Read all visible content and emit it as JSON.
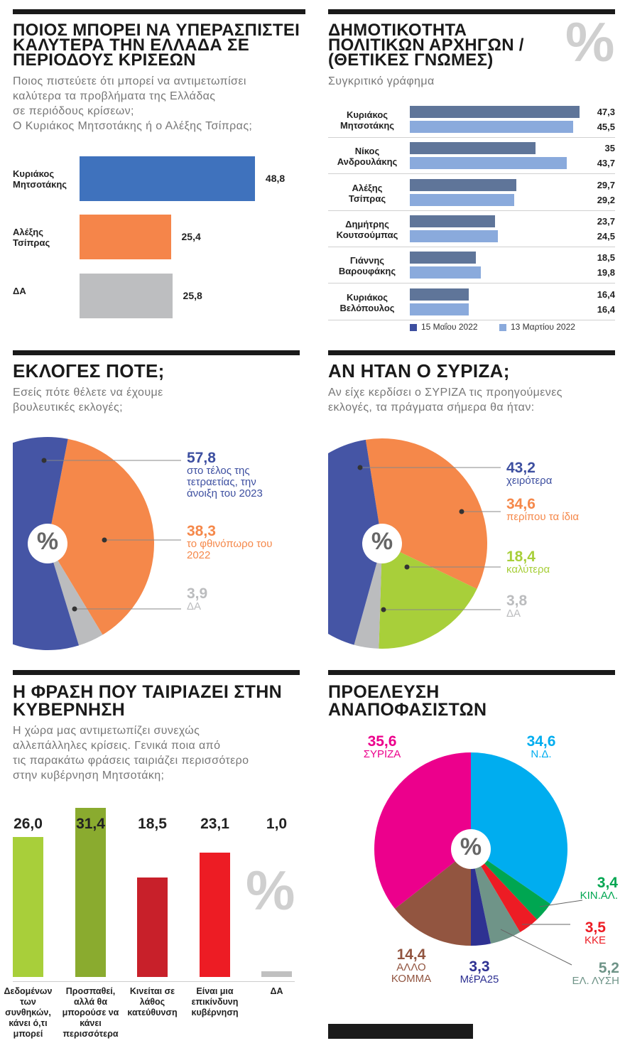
{
  "panels": {
    "crisis": {
      "title": "ΠΟΙΟΣ ΜΠΟΡΕΙ ΝΑ ΥΠΕΡΑΣΠΙΣΤΕΙ ΚΑΛΥΤΕΡΑ ΤΗΝ ΕΛΛΑΔΑ ΣΕ ΠΕΡΙΟΔΟΥΣ ΚΡΙΣΕΩΝ",
      "subtitle": [
        "Ποιος πιστεύετε ότι μπορεί να αντιμετωπίσει",
        "καλύτερα τα προβλήματα της Ελλάδας",
        "σε περιόδους κρίσεων;",
        "Ο Κυριάκος Μητσοτάκης ή ο Αλέξης Τσίπρας;"
      ]
    },
    "popularity": {
      "title": "ΔΗΜΟΤΙΚΟΤΗΤΑ ΠΟΛΙΤΙΚΩΝ ΑΡΧΗΓΩΝ / (ΘΕΤΙΚΕΣ ΓΝΩΜΕΣ)",
      "subtitle": "Συγκριτικό γράφημα",
      "percent_mark": "%"
    },
    "elections": {
      "title": "ΕΚΛΟΓΕΣ ΠΟΤΕ;",
      "subtitle": [
        "Εσείς πότε θέλετε να έχουμε",
        "βουλευτικές εκλογές;"
      ]
    },
    "syriza": {
      "title": "ΑΝ ΗΤΑΝ Ο ΣΥΡΙΖΑ;",
      "subtitle": [
        "Αν είχε κερδίσει ο ΣΥΡΙΖΑ τις προηγούμενες",
        "εκλογές, τα πράγματα σήμερα θα ήταν:"
      ]
    },
    "phrase": {
      "title": "Η ΦΡΑΣΗ ΠΟΥ ΤΑΙΡΙΑΖΕΙ ΣΤΗΝ ΚΥΒΕΡΝΗΣΗ",
      "subtitle": [
        "Η χώρα μας αντιμετωπίζει συνεχώς",
        "αλλεπάλληλες κρίσεις. Γενικά ποια από",
        "τις παρακάτω φράσεις ταιριάζει περισσότερο",
        "στην κυβέρνηση Μητσοτάκη;"
      ],
      "percent_mark": "%"
    },
    "undecided": {
      "title": "ΠΡΟΕΛΕΥΣΗ ΑΝΑΠΟΦΑΣΙΣΤΩΝ"
    }
  },
  "chart_data": [
    {
      "type": "bar",
      "orientation": "horizontal",
      "categories": [
        "Κυριάκος Μητσοτάκης",
        "Αλέξης Τσίπρας",
        "ΔΑ"
      ],
      "values": [
        48.8,
        25.4,
        25.8
      ],
      "labels": [
        "48,8",
        "25,4",
        "25,8"
      ],
      "colors": [
        "#3f72bd",
        "#f5854a",
        "#bdbec0"
      ]
    },
    {
      "type": "bar",
      "orientation": "horizontal",
      "categories": [
        "Κυριάκος Μητσοτάκης",
        "Νίκος Ανδρουλάκης",
        "Αλέξης Τσίπρας",
        "Δημήτρης Κουτσούμπας",
        "Γιάννης Βαρουφάκης",
        "Κυριάκος Βελόπουλος"
      ],
      "series": [
        {
          "name": "15 Μαΐου 2022",
          "values": [
            47.3,
            35,
            29.7,
            23.7,
            18.5,
            16.4
          ],
          "labels": [
            "47,3",
            "35",
            "29,7",
            "23,7",
            "18,5",
            "16,4"
          ],
          "color": "#5f7599",
          "legend_color": "#3d4fa0"
        },
        {
          "name": "13 Μαρτίου 2022",
          "values": [
            45.5,
            43.7,
            29.2,
            24.5,
            19.8,
            16.4
          ],
          "labels": [
            "45,5",
            "43,7",
            "29,2",
            "24,5",
            "19,8",
            "16,4"
          ],
          "color": "#8aaadc",
          "legend_color": "#8aaadc"
        }
      ],
      "legend": "bottom"
    },
    {
      "type": "pie",
      "center_mark": "%",
      "slices": [
        {
          "value": 38.3,
          "label": "38,3",
          "text": "το φθινόπωρο του 2022",
          "color": "#f5884a"
        },
        {
          "value": 3.9,
          "label": "3,9",
          "text": "ΔΑ",
          "color": "#bbbcbe"
        },
        {
          "value": 57.8,
          "label": "57,8",
          "text": "στο τέλος της τετραετίας, την άνοιξη του 2023",
          "color": "#4555a5"
        }
      ]
    },
    {
      "type": "pie",
      "center_mark": "%",
      "slices": [
        {
          "value": 34.6,
          "label": "34,6",
          "text": "περίπου τα ίδια",
          "color": "#f5884a"
        },
        {
          "value": 18.4,
          "label": "18,4",
          "text": "καλύτερα",
          "color": "#a8cf3a"
        },
        {
          "value": 3.8,
          "label": "3,8",
          "text": "ΔΑ",
          "color": "#bbbcbe"
        },
        {
          "value": 43.2,
          "label": "43,2",
          "text": "χειρότερα",
          "color": "#4555a5"
        }
      ]
    },
    {
      "type": "bar",
      "orientation": "vertical",
      "categories": [
        "Δεδομένων των συνθηκών, κάνει ό,τι μπορεί",
        "Προσπαθεί, αλλά θα μπορούσε να κάνει περισσότερα",
        "Κινείται σε λάθος κατεύθυνση",
        "Είναι μια επικίνδυνη κυβέρνηση",
        "ΔΑ"
      ],
      "values": [
        26.0,
        31.4,
        18.5,
        23.1,
        1.0
      ],
      "labels": [
        "26,0",
        "31,4",
        "18,5",
        "23,1",
        "1,0"
      ],
      "colors": [
        "#a8cf3a",
        "#8aab2f",
        "#c8202a",
        "#ed1c24",
        "#c0c0c0"
      ]
    },
    {
      "type": "pie",
      "center_mark": "%",
      "slices": [
        {
          "value": 34.6,
          "label": "34,6",
          "text": "Ν.Δ.",
          "color": "#00adef"
        },
        {
          "value": 3.4,
          "label": "3,4",
          "text": "ΚΙΝ.ΑΛ.",
          "color": "#00a651"
        },
        {
          "value": 3.5,
          "label": "3,5",
          "text": "ΚΚΕ",
          "color": "#ed1c24"
        },
        {
          "value": 5.2,
          "label": "5,2",
          "text": "ΕΛ. ΛΥΣΗ",
          "color": "#6f9488"
        },
        {
          "value": 3.3,
          "label": "3,3",
          "text": "ΜέΡΑ25",
          "color": "#2e3192"
        },
        {
          "value": 14.4,
          "label": "14,4",
          "text": "ΑΛΛΟ ΚΟΜΜΑ",
          "color": "#925540"
        },
        {
          "value": 35.6,
          "label": "35,6",
          "text": "ΣΥΡΙΖΑ",
          "color": "#ec008c"
        }
      ]
    }
  ]
}
